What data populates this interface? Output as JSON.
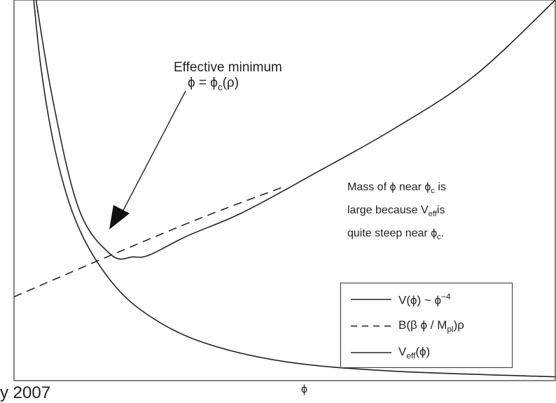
{
  "chart_data": {
    "type": "line",
    "title": "",
    "xlabel": "ϕ",
    "ylabel": "",
    "grid": false,
    "axes_ticks": false,
    "legend_position": "bottom-right",
    "series": [
      {
        "name": "V(ϕ) ~ ϕ^-4",
        "style": "solid",
        "x": [
          0.03,
          0.05,
          0.08,
          0.12,
          0.18,
          0.25,
          0.35,
          0.5,
          0.7,
          1.0
        ],
        "y": [
          1.1,
          0.82,
          0.58,
          0.4,
          0.26,
          0.17,
          0.1,
          0.05,
          0.025,
          0.01
        ]
      },
      {
        "name": "B(β ϕ / M_pl)ρ",
        "style": "dashed",
        "x": [
          0.0,
          0.18,
          0.35,
          0.5
        ],
        "y": [
          0.22,
          0.33,
          0.43,
          0.51
        ]
      },
      {
        "name": "V_eff(ϕ)",
        "style": "solid",
        "x": [
          0.03,
          0.07,
          0.12,
          0.18,
          0.22,
          0.25,
          0.32,
          0.42,
          0.55,
          0.7,
          0.85,
          1.0
        ],
        "y": [
          1.1,
          0.75,
          0.45,
          0.33,
          0.325,
          0.33,
          0.38,
          0.44,
          0.54,
          0.66,
          0.8,
          1.0
        ]
      }
    ]
  },
  "annotations": {
    "effective_minimum": "Effective minimum",
    "phi_prefix": "ϕ = ϕ",
    "phi_sub": "c",
    "phi_suffix": "(ρ)"
  },
  "mass_note": {
    "l1_a": "Mass of ϕ near ϕ",
    "l1_sub": "c",
    "l1_b": " is",
    "l2_a": "large because V",
    "l2_sub": "eff",
    "l2_b": "is",
    "l3_a": "quite steep near ϕ",
    "l3_sub": "c",
    "l3_b": "."
  },
  "legend": {
    "v_main": "V(ϕ) ~ ϕ",
    "v_sup": "−4",
    "b_pre": "B(β ϕ / M",
    "b_sub": "pl",
    "b_post": ")ρ",
    "veff_pre": "V",
    "veff_sub": "eff",
    "veff_post": "(ϕ)"
  },
  "footer_text": "y 2007"
}
